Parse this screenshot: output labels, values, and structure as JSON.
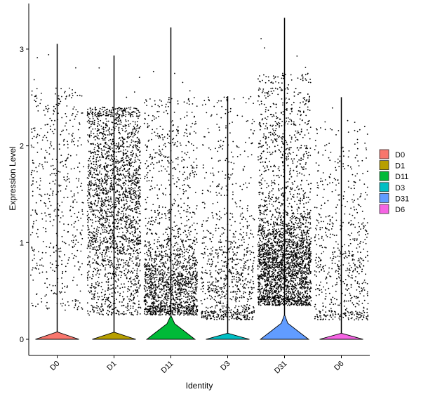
{
  "chart_data": {
    "type": "violin",
    "xlabel": "Identity",
    "ylabel": "Expression Level",
    "ylim": [
      -0.18,
      3.4
    ],
    "yticks": [
      0,
      1,
      2,
      3
    ],
    "grid": false,
    "legend_position": "right",
    "categories": [
      "D0",
      "D1",
      "D11",
      "D3",
      "D31",
      "D6"
    ],
    "series": [
      {
        "name": "D0",
        "color": "#F8766D",
        "max": 3.05,
        "jitter_min": 0.3,
        "jitter_max": 2.6,
        "dense_center": 1.4,
        "dense_spread": 0.75,
        "points": 520,
        "zero_bulge": 0.0
      },
      {
        "name": "D1",
        "color": "#B79F00",
        "max": 2.93,
        "jitter_min": 0.25,
        "jitter_max": 2.4,
        "dense_center": 1.45,
        "dense_spread": 0.6,
        "points": 2300,
        "zero_bulge": 0.0
      },
      {
        "name": "D11",
        "color": "#00BA38",
        "max": 3.22,
        "jitter_min": 0.25,
        "jitter_max": 2.5,
        "dense_center": 0.55,
        "dense_spread": 0.28,
        "points": 1800,
        "zero_bulge": 0.09
      },
      {
        "name": "D3",
        "color": "#00BFC4",
        "max": 2.51,
        "jitter_min": 0.2,
        "jitter_max": 2.5,
        "dense_center": 0.5,
        "dense_spread": 0.35,
        "points": 900,
        "zero_bulge": 0.0
      },
      {
        "name": "D31",
        "color": "#619CFF",
        "max": 3.32,
        "jitter_min": 0.35,
        "jitter_max": 2.75,
        "dense_center": 0.75,
        "dense_spread": 0.3,
        "points": 3200,
        "zero_bulge": 0.09
      },
      {
        "name": "D6",
        "color": "#F564E3",
        "max": 2.5,
        "jitter_min": 0.2,
        "jitter_max": 2.2,
        "dense_center": 0.7,
        "dense_spread": 0.45,
        "points": 650,
        "zero_bulge": 0.0
      }
    ]
  }
}
